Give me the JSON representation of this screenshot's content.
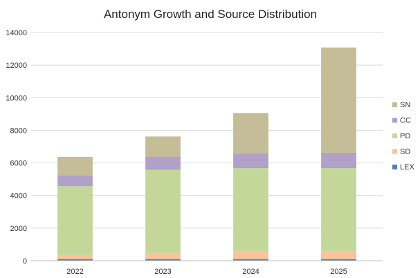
{
  "chart_data": {
    "type": "bar",
    "stacked": true,
    "title": "Antonym Growth and Source Distribution",
    "xlabel": "",
    "ylabel": "",
    "categories": [
      "2022",
      "2023",
      "2024",
      "2025"
    ],
    "ylim": [
      0,
      14000
    ],
    "yticks": [
      0,
      2000,
      4000,
      6000,
      8000,
      10000,
      12000,
      14000
    ],
    "grid": true,
    "legend_position": "right",
    "series": [
      {
        "name": "LEX",
        "color": "#4f81bd",
        "values": [
          100,
          100,
          100,
          100
        ]
      },
      {
        "name": "SD",
        "color": "#f9c499",
        "values": [
          250,
          380,
          500,
          500
        ]
      },
      {
        "name": "PD",
        "color": "#c4d79b",
        "values": [
          4220,
          5100,
          5080,
          5080
        ]
      },
      {
        "name": "CC",
        "color": "#b1a0c7",
        "values": [
          680,
          800,
          900,
          940
        ]
      },
      {
        "name": "SN",
        "color": "#c4bd97",
        "values": [
          1120,
          1240,
          2480,
          6460
        ]
      }
    ]
  }
}
